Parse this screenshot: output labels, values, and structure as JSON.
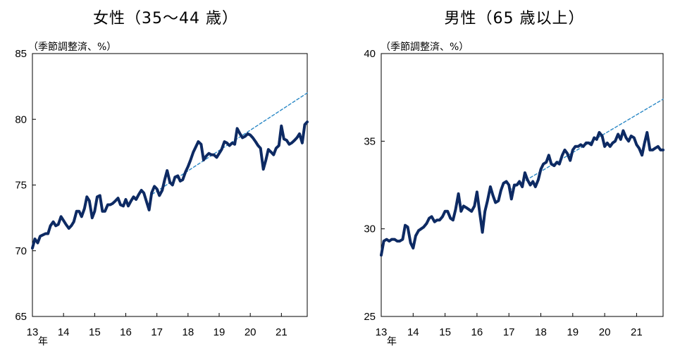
{
  "chart_data": [
    {
      "type": "line",
      "title": "女性（35～44 歳）",
      "unit_note": "（季節調整済、%）",
      "x_ticks": [
        "13",
        "14",
        "15",
        "16",
        "17",
        "18",
        "19",
        "20",
        "21"
      ],
      "x_unit": "年",
      "xlim": [
        2013.0,
        2021.83
      ],
      "ylim": [
        65,
        85
      ],
      "y_ticks": [
        "65",
        "70",
        "75",
        "80",
        "85"
      ],
      "grid": false,
      "series": [
        {
          "style": "solid",
          "color": "#0d2a63",
          "points": [
            [
              2013.0,
              70.2
            ],
            [
              2013.08,
              70.9
            ],
            [
              2013.17,
              70.6
            ],
            [
              2013.25,
              71.1
            ],
            [
              2013.33,
              71.2
            ],
            [
              2013.42,
              71.3
            ],
            [
              2013.5,
              71.3
            ],
            [
              2013.58,
              71.9
            ],
            [
              2013.67,
              72.2
            ],
            [
              2013.75,
              71.9
            ],
            [
              2013.83,
              72.0
            ],
            [
              2013.92,
              72.6
            ],
            [
              2014.0,
              72.3
            ],
            [
              2014.08,
              72.0
            ],
            [
              2014.17,
              71.7
            ],
            [
              2014.25,
              71.9
            ],
            [
              2014.33,
              72.2
            ],
            [
              2014.42,
              73.0
            ],
            [
              2014.5,
              73.0
            ],
            [
              2014.58,
              72.6
            ],
            [
              2014.67,
              73.2
            ],
            [
              2014.75,
              74.1
            ],
            [
              2014.83,
              73.8
            ],
            [
              2014.92,
              72.5
            ],
            [
              2015.0,
              73.0
            ],
            [
              2015.08,
              74.1
            ],
            [
              2015.17,
              74.2
            ],
            [
              2015.25,
              73.0
            ],
            [
              2015.33,
              73.0
            ],
            [
              2015.42,
              73.5
            ],
            [
              2015.5,
              73.5
            ],
            [
              2015.58,
              73.6
            ],
            [
              2015.67,
              73.8
            ],
            [
              2015.75,
              74.0
            ],
            [
              2015.83,
              73.5
            ],
            [
              2015.92,
              73.4
            ],
            [
              2016.0,
              73.9
            ],
            [
              2016.08,
              73.4
            ],
            [
              2016.17,
              73.8
            ],
            [
              2016.25,
              74.1
            ],
            [
              2016.33,
              73.9
            ],
            [
              2016.42,
              74.3
            ],
            [
              2016.5,
              74.6
            ],
            [
              2016.58,
              74.4
            ],
            [
              2016.67,
              73.7
            ],
            [
              2016.75,
              73.1
            ],
            [
              2016.83,
              74.4
            ],
            [
              2016.92,
              74.9
            ],
            [
              2017.0,
              74.7
            ],
            [
              2017.08,
              74.2
            ],
            [
              2017.17,
              74.6
            ],
            [
              2017.25,
              75.4
            ],
            [
              2017.33,
              76.1
            ],
            [
              2017.42,
              75.2
            ],
            [
              2017.5,
              75.0
            ],
            [
              2017.58,
              75.6
            ],
            [
              2017.67,
              75.7
            ],
            [
              2017.75,
              75.3
            ],
            [
              2017.83,
              75.4
            ],
            [
              2017.92,
              76.0
            ],
            [
              2018.0,
              76.4
            ],
            [
              2018.08,
              76.9
            ],
            [
              2018.17,
              77.5
            ],
            [
              2018.25,
              77.9
            ],
            [
              2018.33,
              78.3
            ],
            [
              2018.42,
              78.1
            ],
            [
              2018.5,
              76.9
            ],
            [
              2018.58,
              77.2
            ],
            [
              2018.67,
              77.4
            ],
            [
              2018.75,
              77.3
            ],
            [
              2018.83,
              77.3
            ],
            [
              2018.92,
              77.1
            ],
            [
              2019.0,
              77.4
            ],
            [
              2019.08,
              77.7
            ],
            [
              2019.17,
              78.3
            ],
            [
              2019.25,
              78.2
            ],
            [
              2019.33,
              78.0
            ],
            [
              2019.42,
              78.2
            ],
            [
              2019.5,
              78.1
            ],
            [
              2019.58,
              79.3
            ],
            [
              2019.67,
              78.9
            ],
            [
              2019.75,
              78.6
            ],
            [
              2019.83,
              78.7
            ],
            [
              2019.92,
              78.9
            ],
            [
              2020.0,
              78.8
            ],
            [
              2020.08,
              78.6
            ],
            [
              2020.17,
              78.3
            ],
            [
              2020.25,
              78.0
            ],
            [
              2020.33,
              77.8
            ],
            [
              2020.42,
              76.2
            ],
            [
              2020.5,
              76.9
            ],
            [
              2020.58,
              77.7
            ],
            [
              2020.67,
              77.5
            ],
            [
              2020.75,
              77.3
            ],
            [
              2020.83,
              77.8
            ],
            [
              2020.92,
              78.0
            ],
            [
              2021.0,
              79.5
            ],
            [
              2021.08,
              78.5
            ],
            [
              2021.17,
              78.4
            ],
            [
              2021.25,
              78.1
            ],
            [
              2021.33,
              78.2
            ],
            [
              2021.42,
              78.4
            ],
            [
              2021.5,
              78.6
            ],
            [
              2021.58,
              78.9
            ],
            [
              2021.67,
              78.2
            ],
            [
              2021.75,
              79.6
            ],
            [
              2021.83,
              79.8
            ]
          ]
        },
        {
          "style": "dashed",
          "color": "#2a88c6",
          "points": [
            [
              2016.85,
              74.3
            ],
            [
              2021.83,
              82.0
            ]
          ]
        }
      ]
    },
    {
      "type": "line",
      "title": "男性（65 歳以上）",
      "unit_note": "（季節調整済、%）",
      "x_ticks": [
        "13",
        "14",
        "15",
        "16",
        "17",
        "18",
        "19",
        "20",
        "21"
      ],
      "x_unit": "年",
      "xlim": [
        2013.0,
        2021.83
      ],
      "ylim": [
        25,
        40
      ],
      "y_ticks": [
        "25",
        "30",
        "35",
        "40"
      ],
      "grid": false,
      "series": [
        {
          "style": "solid",
          "color": "#0d2a63",
          "points": [
            [
              2013.0,
              28.5
            ],
            [
              2013.08,
              29.3
            ],
            [
              2013.17,
              29.4
            ],
            [
              2013.25,
              29.3
            ],
            [
              2013.33,
              29.4
            ],
            [
              2013.42,
              29.4
            ],
            [
              2013.5,
              29.3
            ],
            [
              2013.58,
              29.3
            ],
            [
              2013.67,
              29.4
            ],
            [
              2013.75,
              30.2
            ],
            [
              2013.83,
              30.1
            ],
            [
              2013.92,
              29.2
            ],
            [
              2014.0,
              28.9
            ],
            [
              2014.08,
              29.6
            ],
            [
              2014.17,
              29.9
            ],
            [
              2014.25,
              30.0
            ],
            [
              2014.33,
              30.1
            ],
            [
              2014.42,
              30.3
            ],
            [
              2014.5,
              30.6
            ],
            [
              2014.58,
              30.7
            ],
            [
              2014.67,
              30.4
            ],
            [
              2014.75,
              30.5
            ],
            [
              2014.83,
              30.5
            ],
            [
              2014.92,
              30.7
            ],
            [
              2015.0,
              31.0
            ],
            [
              2015.08,
              31.0
            ],
            [
              2015.17,
              30.6
            ],
            [
              2015.25,
              30.5
            ],
            [
              2015.33,
              31.1
            ],
            [
              2015.42,
              32.0
            ],
            [
              2015.5,
              31.0
            ],
            [
              2015.58,
              31.3
            ],
            [
              2015.67,
              31.2
            ],
            [
              2015.75,
              31.1
            ],
            [
              2015.83,
              31.0
            ],
            [
              2015.92,
              31.3
            ],
            [
              2016.0,
              32.1
            ],
            [
              2016.08,
              31.0
            ],
            [
              2016.17,
              29.8
            ],
            [
              2016.25,
              31.0
            ],
            [
              2016.33,
              31.6
            ],
            [
              2016.42,
              32.4
            ],
            [
              2016.5,
              31.9
            ],
            [
              2016.58,
              31.5
            ],
            [
              2016.67,
              31.6
            ],
            [
              2016.75,
              32.2
            ],
            [
              2016.83,
              32.6
            ],
            [
              2016.92,
              32.7
            ],
            [
              2017.0,
              32.5
            ],
            [
              2017.08,
              31.7
            ],
            [
              2017.17,
              32.5
            ],
            [
              2017.25,
              32.5
            ],
            [
              2017.33,
              32.7
            ],
            [
              2017.42,
              32.4
            ],
            [
              2017.5,
              33.2
            ],
            [
              2017.58,
              32.8
            ],
            [
              2017.67,
              32.5
            ],
            [
              2017.75,
              32.7
            ],
            [
              2017.83,
              32.4
            ],
            [
              2017.92,
              32.8
            ],
            [
              2018.0,
              33.4
            ],
            [
              2018.08,
              33.7
            ],
            [
              2018.17,
              33.8
            ],
            [
              2018.25,
              34.2
            ],
            [
              2018.33,
              33.7
            ],
            [
              2018.42,
              33.6
            ],
            [
              2018.5,
              33.8
            ],
            [
              2018.58,
              33.7
            ],
            [
              2018.67,
              34.2
            ],
            [
              2018.75,
              34.5
            ],
            [
              2018.83,
              34.3
            ],
            [
              2018.92,
              33.9
            ],
            [
              2019.0,
              34.5
            ],
            [
              2019.08,
              34.7
            ],
            [
              2019.17,
              34.7
            ],
            [
              2019.25,
              34.8
            ],
            [
              2019.33,
              34.7
            ],
            [
              2019.42,
              34.9
            ],
            [
              2019.5,
              34.9
            ],
            [
              2019.58,
              34.8
            ],
            [
              2019.67,
              35.2
            ],
            [
              2019.75,
              35.1
            ],
            [
              2019.83,
              35.5
            ],
            [
              2019.92,
              35.3
            ],
            [
              2020.0,
              34.7
            ],
            [
              2020.08,
              34.9
            ],
            [
              2020.17,
              34.7
            ],
            [
              2020.25,
              34.9
            ],
            [
              2020.33,
              35.0
            ],
            [
              2020.42,
              35.4
            ],
            [
              2020.5,
              35.1
            ],
            [
              2020.58,
              35.6
            ],
            [
              2020.67,
              35.2
            ],
            [
              2020.75,
              35.0
            ],
            [
              2020.83,
              35.3
            ],
            [
              2020.92,
              35.2
            ],
            [
              2021.0,
              34.8
            ],
            [
              2021.08,
              34.6
            ],
            [
              2021.17,
              34.2
            ],
            [
              2021.25,
              34.9
            ],
            [
              2021.33,
              35.5
            ],
            [
              2021.42,
              34.5
            ],
            [
              2021.5,
              34.5
            ],
            [
              2021.58,
              34.6
            ],
            [
              2021.67,
              34.7
            ],
            [
              2021.75,
              34.5
            ],
            [
              2021.83,
              34.5
            ]
          ]
        },
        {
          "style": "dashed",
          "color": "#2a88c6",
          "points": [
            [
              2017.0,
              32.2
            ],
            [
              2021.83,
              37.4
            ]
          ]
        }
      ]
    }
  ]
}
